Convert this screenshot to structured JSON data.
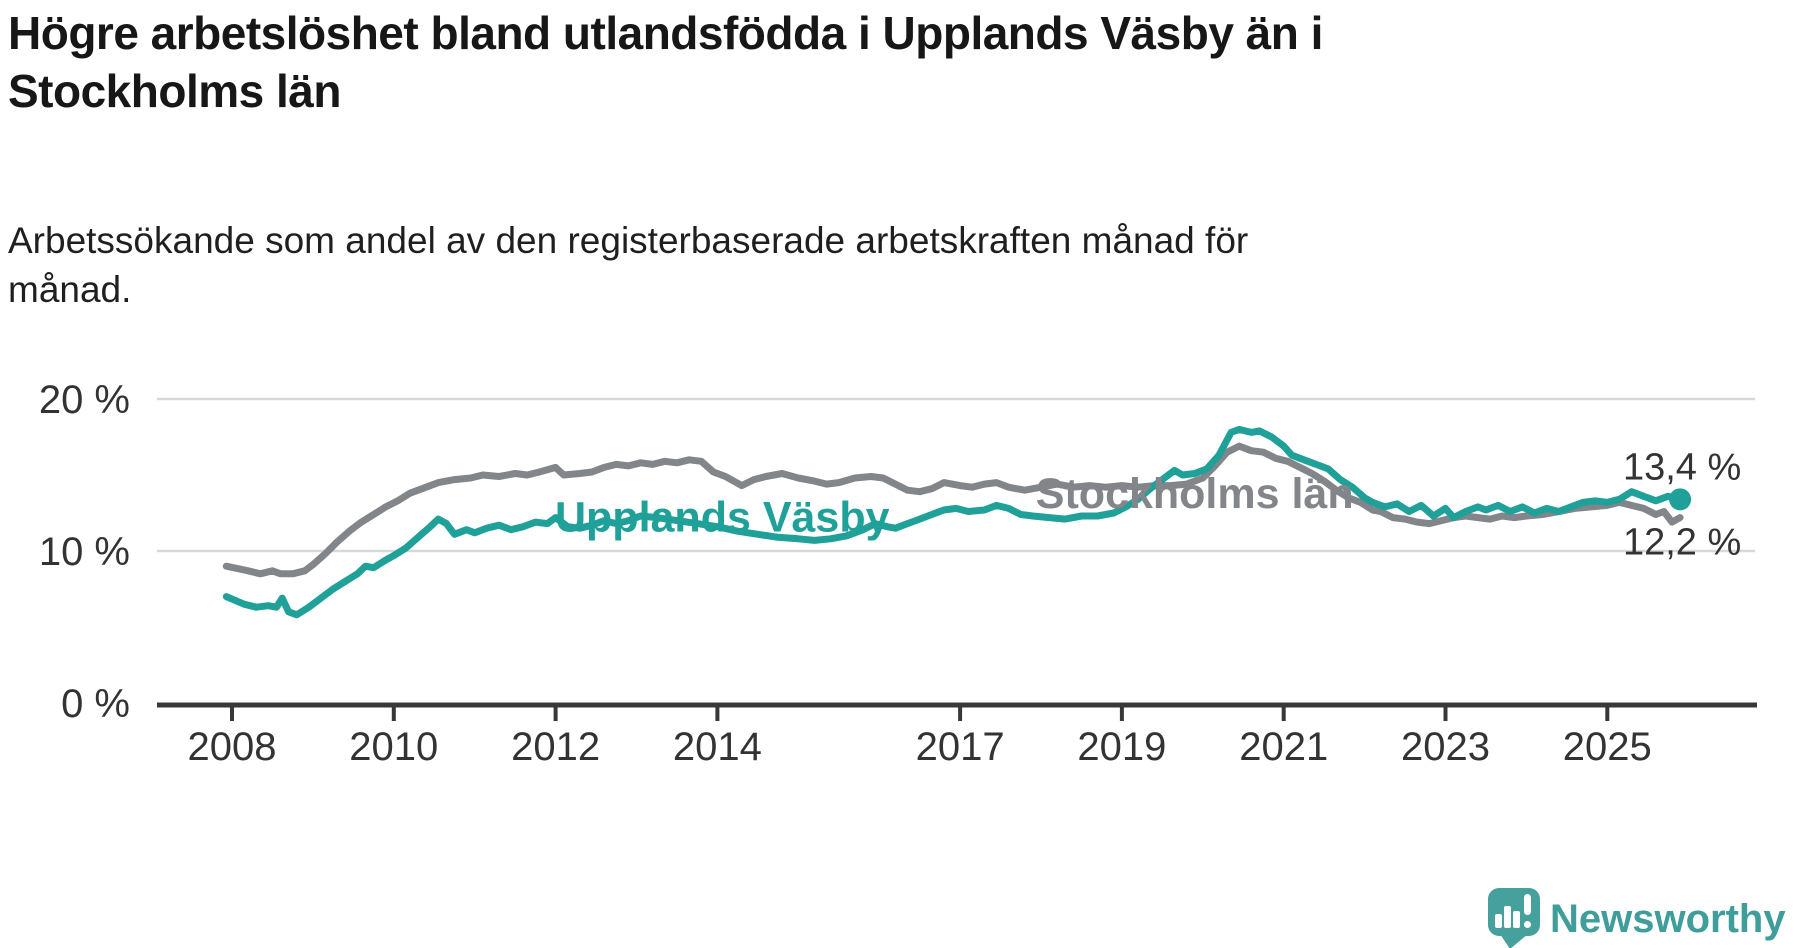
{
  "header": {
    "title": "Högre arbetslöshet bland utlandsfödda i Upplands Väsby än i Stockholms län",
    "title_lines": [
      "Högre arbetslöshet bland utlandsfödda i Upplands Väsby än i",
      "Stockholms län"
    ],
    "subtitle_lines": [
      "Arbetssökande som andel av den registerbaserade arbetskraften månad för",
      "månad."
    ]
  },
  "branding": {
    "logo_text": "Newsworthy",
    "logo_color": "#3f9e99",
    "bubble_color": "#46a09b"
  },
  "chart_data": {
    "type": "line",
    "title": "Högre arbetslöshet bland utlandsfödda i Upplands Väsby än i Stockholms län",
    "subtitle": "Arbetssökande som andel av den registerbaserade arbetskraften månad för månad.",
    "xlabel": "",
    "ylabel": "",
    "grid": "horizontal",
    "xlim": [
      2007.93,
      2026.85
    ],
    "ylim": [
      0,
      21.5
    ],
    "x_ticks": [
      2008,
      2010,
      2012,
      2014,
      2017,
      2019,
      2021,
      2023,
      2025
    ],
    "y_ticks": [
      {
        "value": 0,
        "label": "0 %"
      },
      {
        "value": 10,
        "label": "10 %"
      },
      {
        "value": 20,
        "label": "20 %"
      }
    ],
    "colors": {
      "grid": "#d8d8d8",
      "axis": "#383838",
      "tick_text": "#333333",
      "annotation_text": "#333333"
    },
    "series_labels": [
      {
        "text": "Upplands Väsby",
        "x": 2014.06,
        "y": 12.2
      },
      {
        "text": "Stockholms län",
        "x": 2019.9,
        "y": 13.75
      }
    ],
    "series": [
      {
        "name": "Upplands Väsby",
        "color": "#1fa199",
        "end_label": "13,4 %",
        "end_value": 13.4,
        "end_label_position": "above",
        "end_marker": true,
        "points": [
          [
            2007.93,
            7.0
          ],
          [
            2008.15,
            6.5
          ],
          [
            2008.3,
            6.3
          ],
          [
            2008.45,
            6.4
          ],
          [
            2008.55,
            6.3
          ],
          [
            2008.62,
            6.9
          ],
          [
            2008.7,
            6.0
          ],
          [
            2008.8,
            5.8
          ],
          [
            2008.95,
            6.3
          ],
          [
            2009.1,
            6.9
          ],
          [
            2009.25,
            7.5
          ],
          [
            2009.4,
            8.0
          ],
          [
            2009.55,
            8.5
          ],
          [
            2009.65,
            9.0
          ],
          [
            2009.75,
            8.9
          ],
          [
            2009.9,
            9.4
          ],
          [
            2010.0,
            9.7
          ],
          [
            2010.15,
            10.2
          ],
          [
            2010.3,
            10.9
          ],
          [
            2010.45,
            11.6
          ],
          [
            2010.55,
            12.1
          ],
          [
            2010.65,
            11.8
          ],
          [
            2010.75,
            11.1
          ],
          [
            2010.9,
            11.4
          ],
          [
            2011.0,
            11.2
          ],
          [
            2011.15,
            11.5
          ],
          [
            2011.3,
            11.7
          ],
          [
            2011.45,
            11.4
          ],
          [
            2011.6,
            11.6
          ],
          [
            2011.75,
            11.9
          ],
          [
            2011.9,
            11.8
          ],
          [
            2012.0,
            12.2
          ],
          [
            2012.15,
            11.6
          ],
          [
            2012.3,
            11.5
          ],
          [
            2012.45,
            11.7
          ],
          [
            2012.6,
            12.0
          ],
          [
            2012.75,
            11.8
          ],
          [
            2012.9,
            12.0
          ],
          [
            2013.05,
            12.3
          ],
          [
            2013.25,
            12.2
          ],
          [
            2013.5,
            12.0
          ],
          [
            2013.75,
            11.8
          ],
          [
            2014.0,
            11.6
          ],
          [
            2014.25,
            11.3
          ],
          [
            2014.5,
            11.1
          ],
          [
            2014.75,
            10.9
          ],
          [
            2015.0,
            10.8
          ],
          [
            2015.2,
            10.7
          ],
          [
            2015.4,
            10.8
          ],
          [
            2015.6,
            11.0
          ],
          [
            2015.8,
            11.4
          ],
          [
            2015.95,
            11.8
          ],
          [
            2016.1,
            11.6
          ],
          [
            2016.2,
            11.5
          ],
          [
            2016.35,
            11.8
          ],
          [
            2016.5,
            12.1
          ],
          [
            2016.65,
            12.4
          ],
          [
            2016.8,
            12.7
          ],
          [
            2016.95,
            12.8
          ],
          [
            2017.1,
            12.6
          ],
          [
            2017.3,
            12.7
          ],
          [
            2017.45,
            13.0
          ],
          [
            2017.6,
            12.8
          ],
          [
            2017.75,
            12.4
          ],
          [
            2017.9,
            12.3
          ],
          [
            2018.1,
            12.2
          ],
          [
            2018.3,
            12.1
          ],
          [
            2018.5,
            12.3
          ],
          [
            2018.7,
            12.3
          ],
          [
            2018.9,
            12.5
          ],
          [
            2019.05,
            12.9
          ],
          [
            2019.2,
            13.4
          ],
          [
            2019.35,
            14.1
          ],
          [
            2019.5,
            14.7
          ],
          [
            2019.65,
            15.3
          ],
          [
            2019.75,
            15.0
          ],
          [
            2019.9,
            15.1
          ],
          [
            2020.05,
            15.4
          ],
          [
            2020.2,
            16.3
          ],
          [
            2020.35,
            17.8
          ],
          [
            2020.45,
            18.0
          ],
          [
            2020.6,
            17.8
          ],
          [
            2020.7,
            17.9
          ],
          [
            2020.85,
            17.5
          ],
          [
            2021.0,
            16.9
          ],
          [
            2021.1,
            16.3
          ],
          [
            2021.25,
            16.0
          ],
          [
            2021.4,
            15.7
          ],
          [
            2021.55,
            15.4
          ],
          [
            2021.7,
            14.7
          ],
          [
            2021.85,
            14.2
          ],
          [
            2022.0,
            13.5
          ],
          [
            2022.1,
            13.2
          ],
          [
            2022.25,
            12.9
          ],
          [
            2022.4,
            13.1
          ],
          [
            2022.55,
            12.6
          ],
          [
            2022.7,
            13.0
          ],
          [
            2022.85,
            12.3
          ],
          [
            2023.0,
            12.8
          ],
          [
            2023.1,
            12.2
          ],
          [
            2023.25,
            12.6
          ],
          [
            2023.4,
            12.9
          ],
          [
            2023.5,
            12.7
          ],
          [
            2023.65,
            13.0
          ],
          [
            2023.8,
            12.6
          ],
          [
            2023.95,
            12.9
          ],
          [
            2024.1,
            12.5
          ],
          [
            2024.25,
            12.8
          ],
          [
            2024.4,
            12.6
          ],
          [
            2024.55,
            12.9
          ],
          [
            2024.7,
            13.2
          ],
          [
            2024.85,
            13.3
          ],
          [
            2025.0,
            13.2
          ],
          [
            2025.15,
            13.4
          ],
          [
            2025.3,
            13.9
          ],
          [
            2025.45,
            13.6
          ],
          [
            2025.6,
            13.3
          ],
          [
            2025.75,
            13.6
          ],
          [
            2025.9,
            13.4
          ]
        ]
      },
      {
        "name": "Stockholms län",
        "color": "#82858a",
        "end_label": "12,2 %",
        "end_value": 12.2,
        "end_label_position": "below",
        "end_marker": false,
        "points": [
          [
            2007.93,
            9.0
          ],
          [
            2008.2,
            8.7
          ],
          [
            2008.35,
            8.5
          ],
          [
            2008.5,
            8.7
          ],
          [
            2008.6,
            8.5
          ],
          [
            2008.75,
            8.5
          ],
          [
            2008.9,
            8.7
          ],
          [
            2009.0,
            9.1
          ],
          [
            2009.15,
            9.8
          ],
          [
            2009.3,
            10.6
          ],
          [
            2009.45,
            11.3
          ],
          [
            2009.6,
            11.9
          ],
          [
            2009.75,
            12.4
          ],
          [
            2009.9,
            12.9
          ],
          [
            2010.05,
            13.3
          ],
          [
            2010.2,
            13.8
          ],
          [
            2010.35,
            14.1
          ],
          [
            2010.55,
            14.5
          ],
          [
            2010.75,
            14.7
          ],
          [
            2010.95,
            14.8
          ],
          [
            2011.1,
            15.0
          ],
          [
            2011.3,
            14.9
          ],
          [
            2011.5,
            15.1
          ],
          [
            2011.65,
            15.0
          ],
          [
            2011.8,
            15.2
          ],
          [
            2012.0,
            15.5
          ],
          [
            2012.1,
            15.0
          ],
          [
            2012.3,
            15.1
          ],
          [
            2012.45,
            15.2
          ],
          [
            2012.6,
            15.5
          ],
          [
            2012.75,
            15.7
          ],
          [
            2012.9,
            15.6
          ],
          [
            2013.05,
            15.8
          ],
          [
            2013.2,
            15.7
          ],
          [
            2013.35,
            15.9
          ],
          [
            2013.5,
            15.8
          ],
          [
            2013.65,
            16.0
          ],
          [
            2013.8,
            15.9
          ],
          [
            2013.95,
            15.2
          ],
          [
            2014.1,
            14.9
          ],
          [
            2014.3,
            14.3
          ],
          [
            2014.45,
            14.7
          ],
          [
            2014.6,
            14.9
          ],
          [
            2014.8,
            15.1
          ],
          [
            2015.0,
            14.8
          ],
          [
            2015.2,
            14.6
          ],
          [
            2015.35,
            14.4
          ],
          [
            2015.5,
            14.5
          ],
          [
            2015.7,
            14.8
          ],
          [
            2015.9,
            14.9
          ],
          [
            2016.05,
            14.8
          ],
          [
            2016.2,
            14.4
          ],
          [
            2016.35,
            14.0
          ],
          [
            2016.5,
            13.9
          ],
          [
            2016.65,
            14.1
          ],
          [
            2016.8,
            14.5
          ],
          [
            2017.0,
            14.3
          ],
          [
            2017.15,
            14.2
          ],
          [
            2017.3,
            14.4
          ],
          [
            2017.45,
            14.5
          ],
          [
            2017.6,
            14.2
          ],
          [
            2017.8,
            14.0
          ],
          [
            2018.0,
            14.2
          ],
          [
            2018.2,
            14.4
          ],
          [
            2018.4,
            14.2
          ],
          [
            2018.6,
            14.3
          ],
          [
            2018.8,
            14.2
          ],
          [
            2019.0,
            14.3
          ],
          [
            2019.2,
            14.2
          ],
          [
            2019.4,
            14.3
          ],
          [
            2019.6,
            14.3
          ],
          [
            2019.8,
            14.4
          ],
          [
            2020.0,
            14.8
          ],
          [
            2020.15,
            15.6
          ],
          [
            2020.3,
            16.5
          ],
          [
            2020.45,
            16.9
          ],
          [
            2020.6,
            16.6
          ],
          [
            2020.75,
            16.5
          ],
          [
            2020.9,
            16.1
          ],
          [
            2021.05,
            15.9
          ],
          [
            2021.2,
            15.5
          ],
          [
            2021.35,
            15.1
          ],
          [
            2021.5,
            14.6
          ],
          [
            2021.65,
            14.0
          ],
          [
            2021.8,
            13.5
          ],
          [
            2021.95,
            13.2
          ],
          [
            2022.1,
            12.7
          ],
          [
            2022.2,
            12.6
          ],
          [
            2022.35,
            12.2
          ],
          [
            2022.5,
            12.1
          ],
          [
            2022.65,
            11.9
          ],
          [
            2022.8,
            11.8
          ],
          [
            2022.95,
            12.0
          ],
          [
            2023.1,
            12.2
          ],
          [
            2023.25,
            12.3
          ],
          [
            2023.4,
            12.2
          ],
          [
            2023.55,
            12.1
          ],
          [
            2023.7,
            12.3
          ],
          [
            2023.85,
            12.2
          ],
          [
            2024.0,
            12.3
          ],
          [
            2024.2,
            12.4
          ],
          [
            2024.4,
            12.6
          ],
          [
            2024.6,
            12.8
          ],
          [
            2024.8,
            12.9
          ],
          [
            2025.0,
            13.0
          ],
          [
            2025.15,
            13.2
          ],
          [
            2025.3,
            13.0
          ],
          [
            2025.45,
            12.8
          ],
          [
            2025.6,
            12.4
          ],
          [
            2025.7,
            12.6
          ],
          [
            2025.8,
            11.9
          ],
          [
            2025.9,
            12.2
          ]
        ]
      }
    ]
  }
}
